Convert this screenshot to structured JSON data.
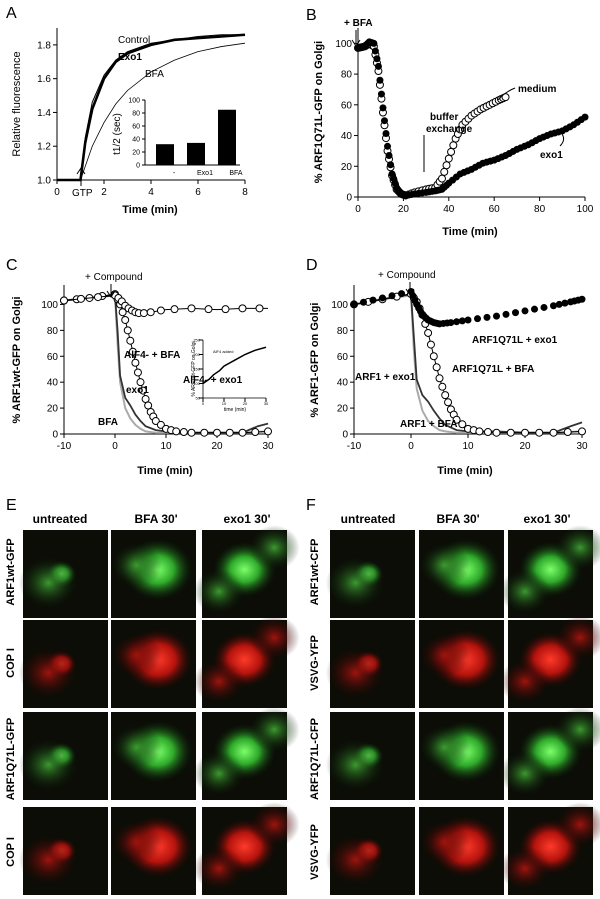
{
  "panels": {
    "a": "A",
    "b": "B",
    "c": "C",
    "d": "D",
    "e": "E",
    "f": "F"
  },
  "chart_data": [
    {
      "type": "line",
      "xlabel": "Time (min)",
      "ylabel": "Relative fluorescence",
      "xlim": [
        0,
        8
      ],
      "ylim": [
        1.0,
        1.9
      ],
      "xticks": [
        0,
        2,
        4,
        6,
        8
      ],
      "yticks": [
        1.0,
        1.2,
        1.4,
        1.6,
        1.8
      ],
      "gtp_label": "GTP",
      "series": [
        {
          "name": "Control",
          "x": [
            0,
            0.5,
            1.0,
            1.2,
            1.5,
            2.0,
            2.5,
            3.0,
            4.0,
            5.0,
            6.0,
            7.0,
            8.0
          ],
          "y": [
            1.0,
            1.0,
            1.0,
            1.25,
            1.46,
            1.62,
            1.71,
            1.76,
            1.81,
            1.83,
            1.85,
            1.86,
            1.86
          ]
        },
        {
          "name": "Exo1",
          "x": [
            0,
            0.5,
            1.0,
            1.2,
            1.5,
            2.0,
            2.5,
            3.0,
            4.0,
            5.0,
            6.0,
            7.0,
            8.0
          ],
          "y": [
            1.0,
            1.0,
            1.0,
            1.22,
            1.42,
            1.6,
            1.7,
            1.75,
            1.8,
            1.83,
            1.84,
            1.85,
            1.86
          ]
        },
        {
          "name": "BFA",
          "x": [
            0,
            0.5,
            1.0,
            1.5,
            2.0,
            2.5,
            3.0,
            4.0,
            5.0,
            6.0,
            7.0,
            8.0
          ],
          "y": [
            1.0,
            1.0,
            1.0,
            1.2,
            1.34,
            1.45,
            1.53,
            1.64,
            1.71,
            1.76,
            1.79,
            1.81
          ]
        }
      ]
    },
    {
      "type": "bar",
      "ylabel": "t1/2 (sec)",
      "categories": [
        "-",
        "Exo1",
        "BFA"
      ],
      "values": [
        32,
        34,
        85
      ],
      "ylim": [
        0,
        100
      ],
      "yticks": [
        0,
        20,
        40,
        60,
        80,
        100
      ]
    },
    {
      "type": "scatter",
      "xlabel": "Time (min)",
      "ylabel": "% ARF1Q71L-GFP on Golgi",
      "xlim": [
        0,
        100
      ],
      "ylim": [
        0,
        110
      ],
      "xticks": [
        0,
        20,
        40,
        60,
        80,
        100
      ],
      "yticks": [
        0,
        20,
        40,
        60,
        80,
        100
      ],
      "annotations": [
        "+ BFA",
        "buffer",
        "exchange"
      ],
      "series": [
        {
          "name": "exo1",
          "x": [
            0,
            3,
            5,
            7,
            9,
            11,
            13,
            15,
            17,
            19,
            21,
            25,
            30,
            34,
            37,
            40,
            45,
            50,
            55,
            60,
            65,
            70,
            75,
            80,
            85,
            90,
            95,
            100
          ],
          "y": [
            97,
            98,
            101,
            100,
            85,
            58,
            33,
            15,
            6,
            2,
            1,
            2,
            3,
            4,
            5,
            9,
            15,
            18,
            22,
            24,
            27,
            31,
            34,
            38,
            41,
            43,
            47,
            52
          ]
        },
        {
          "name": "medium",
          "x": [
            0,
            3,
            5,
            7,
            9,
            11,
            13,
            15,
            17,
            19,
            21,
            25,
            30,
            34,
            37,
            40,
            43,
            46,
            50,
            54,
            58,
            62,
            65
          ],
          "y": [
            97,
            98,
            100,
            98,
            82,
            55,
            30,
            14,
            5,
            2,
            1,
            3,
            5,
            6,
            12,
            25,
            38,
            47,
            53,
            57,
            60,
            63,
            65
          ]
        }
      ]
    },
    {
      "type": "line",
      "xlabel": "Time (min)",
      "ylabel": "% ARF1wt-GFP on Golgi",
      "xlim": [
        -10,
        30
      ],
      "ylim": [
        0,
        115
      ],
      "xticks": [
        -10,
        0,
        10,
        20,
        30
      ],
      "yticks": [
        0,
        20,
        40,
        60,
        80,
        100
      ],
      "annotations": [
        "+ Compound"
      ],
      "series": [
        {
          "name": "AlF4- + exo1",
          "x": [
            -10,
            -5,
            0,
            1,
            2,
            3,
            4,
            5,
            7,
            10,
            15,
            20,
            25,
            30
          ],
          "y": [
            103,
            105,
            107,
            104,
            99,
            96,
            94,
            93,
            94,
            96,
            97,
            96,
            97,
            97
          ]
        },
        {
          "name": "AlF4- + BFA",
          "x": [
            -10,
            -5,
            0,
            1,
            2,
            3,
            4,
            5,
            6,
            7,
            8,
            10,
            12,
            15,
            20,
            25,
            30
          ],
          "y": [
            103,
            105,
            108,
            100,
            88,
            72,
            55,
            40,
            27,
            17,
            10,
            4,
            2,
            1,
            1,
            1,
            2
          ]
        },
        {
          "name": "exo1",
          "x": [
            -10,
            -5,
            0,
            0.5,
            1,
            2,
            3,
            4,
            5,
            6,
            8,
            10,
            15,
            20,
            25,
            28,
            30
          ],
          "y": [
            103,
            105,
            107,
            80,
            45,
            28,
            22,
            15,
            10,
            6,
            3,
            2,
            1,
            1,
            1,
            6,
            8
          ]
        },
        {
          "name": "BFA",
          "x": [
            -10,
            -5,
            0,
            0.5,
            1,
            2,
            3,
            4,
            5,
            6,
            8,
            10,
            15,
            20,
            25,
            30
          ],
          "y": [
            103,
            105,
            107,
            70,
            40,
            20,
            12,
            7,
            4,
            2,
            1,
            1,
            1,
            1,
            1,
            2
          ]
        }
      ]
    },
    {
      "type": "line",
      "ylabel": "% ARF1wt-GFP on Golgi",
      "xlabel": "time (min)",
      "annotation": "AlF4 added",
      "xlim": [
        0,
        30
      ],
      "ylim": [
        50,
        250
      ],
      "xticks": [
        0,
        10,
        20,
        30
      ],
      "yticks": [
        50,
        100,
        150,
        200,
        250
      ],
      "series": [
        {
          "x": [
            0,
            3,
            5,
            8,
            10,
            15,
            20,
            25,
            30
          ],
          "y": [
            100,
            115,
            130,
            145,
            160,
            180,
            200,
            215,
            225
          ]
        }
      ]
    },
    {
      "type": "line",
      "xlabel": "Time (min)",
      "ylabel": "% ARF1-GFP on Golgi",
      "xlim": [
        -10,
        30
      ],
      "ylim": [
        0,
        115
      ],
      "xticks": [
        -10,
        0,
        10,
        20,
        30
      ],
      "yticks": [
        0,
        20,
        40,
        60,
        80,
        100
      ],
      "annotations": [
        "+ Compound"
      ],
      "series": [
        {
          "name": "ARF1Q71L + exo1",
          "x": [
            -10,
            -5,
            0,
            1,
            2,
            3,
            4,
            5,
            7,
            10,
            15,
            20,
            25,
            28,
            30
          ],
          "y": [
            100,
            105,
            110,
            100,
            92,
            88,
            86,
            85,
            86,
            88,
            91,
            95,
            99,
            102,
            104
          ]
        },
        {
          "name": "ARF1 + exo1",
          "x": [
            -10,
            -5,
            0,
            0.5,
            1,
            2,
            3,
            4,
            5,
            6,
            8,
            10,
            15,
            20,
            25,
            28,
            30
          ],
          "y": [
            100,
            104,
            108,
            75,
            42,
            30,
            25,
            18,
            12,
            7,
            3,
            2,
            2,
            1,
            1,
            6,
            9
          ]
        },
        {
          "name": "ARF1Q71L + BFA",
          "x": [
            -10,
            -5,
            0,
            1,
            2,
            3,
            4,
            5,
            6,
            7,
            8,
            10,
            12,
            15,
            20,
            25,
            30
          ],
          "y": [
            100,
            104,
            108,
            102,
            92,
            78,
            60,
            43,
            30,
            19,
            11,
            4,
            2,
            1,
            1,
            1,
            2
          ]
        },
        {
          "name": "ARF1 + BFA",
          "x": [
            -10,
            -5,
            0,
            0.5,
            1,
            2,
            3,
            4,
            5,
            6,
            8,
            10,
            15,
            20,
            25,
            30
          ],
          "y": [
            100,
            104,
            107,
            65,
            35,
            18,
            10,
            6,
            3,
            2,
            1,
            1,
            1,
            1,
            1,
            2
          ]
        }
      ]
    }
  ],
  "micrographs": {
    "e": {
      "columns": [
        "untreated",
        "BFA 30'",
        "exo1 30'"
      ],
      "rows": [
        "ARF1wt-GFP",
        "COP I",
        "ARF1Q71L-GFP",
        "COP I"
      ]
    },
    "f": {
      "columns": [
        "untreated",
        "BFA 30'",
        "exo1 30'"
      ],
      "rows": [
        "ARF1wt-CFP",
        "VSVG-YFP",
        "ARF1Q71L-CFP",
        "VSVG-YFP"
      ]
    }
  },
  "colors": {
    "bfa_curve": "#aaaaaa",
    "black": "#000000",
    "gfp_green": "#3fbf34",
    "cop_red": "#c81a10",
    "background_dark": "#0b0d06"
  }
}
